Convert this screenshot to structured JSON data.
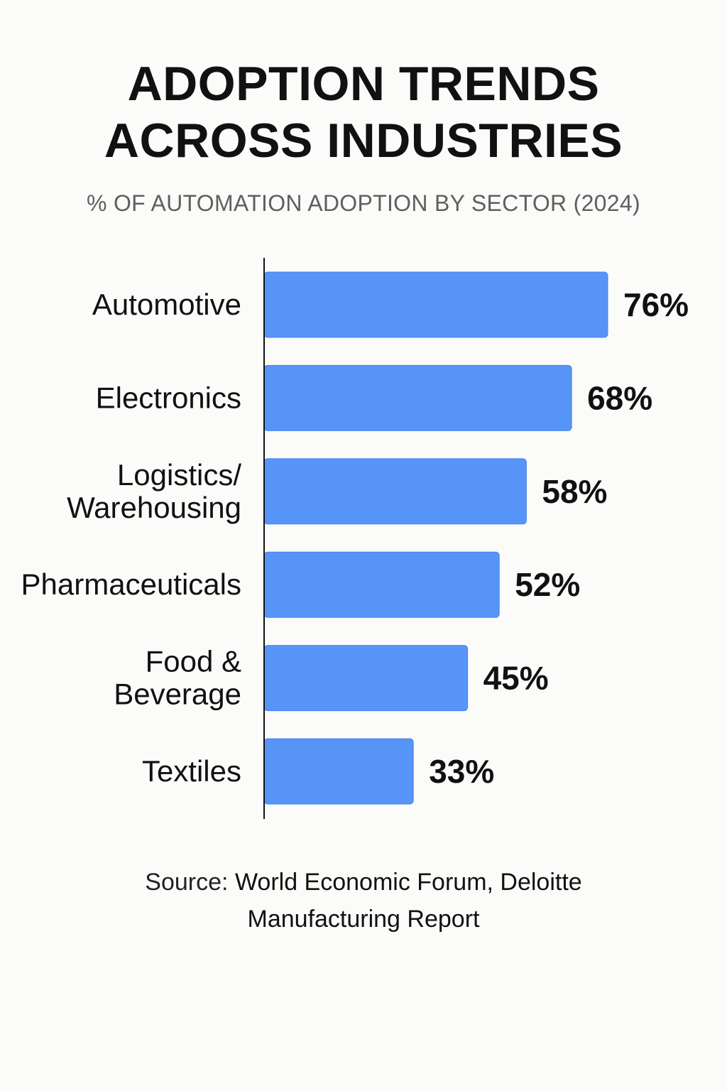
{
  "chart_data": {
    "type": "bar",
    "orientation": "horizontal",
    "title_lines": [
      "ADOPTION TRENDS",
      "ACROSS INDUSTRIES"
    ],
    "subtitle": "% OF AUTOMATION ADOPTION BY SECTOR (2024)",
    "categories": [
      [
        "Automotive"
      ],
      [
        "Electronics"
      ],
      [
        "Logistics/",
        "Warehousing"
      ],
      [
        "Pharmaceuticals"
      ],
      [
        "Food &",
        "Beverage"
      ],
      [
        "Textiles"
      ]
    ],
    "values": [
      76,
      68,
      58,
      52,
      45,
      33
    ],
    "value_labels": [
      "76%",
      "68%",
      "58%",
      "52%",
      "45%",
      "33%"
    ],
    "unit": "%",
    "xlim": [
      0,
      100
    ],
    "grid": false,
    "legend": "none",
    "bar_color": "#5794f7",
    "bar_edge_color": "#4a84e6"
  },
  "source": {
    "label": "Source:",
    "text_lines": [
      "World Economic Forum, Deloitte",
      "Manufacturing Report"
    ]
  }
}
